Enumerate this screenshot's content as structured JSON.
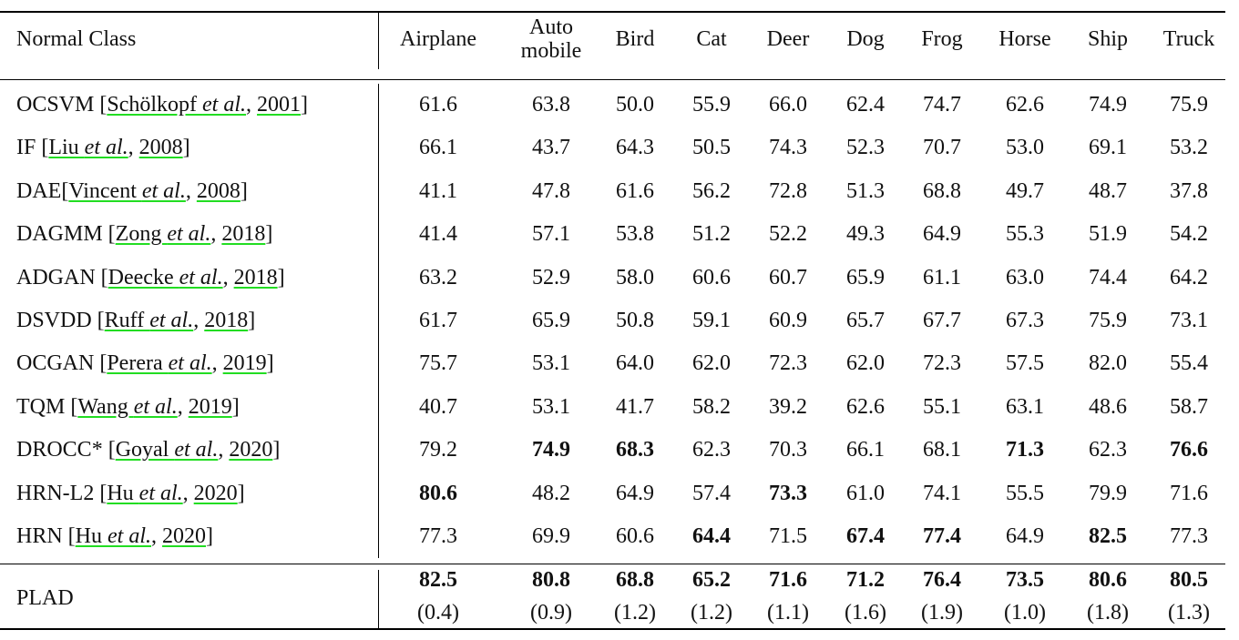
{
  "table": {
    "header": [
      "Normal Class",
      "Airplane",
      "Auto\nmobile",
      "Bird",
      "Cat",
      "Deer",
      "Dog",
      "Frog",
      "Horse",
      "Ship",
      "Truck"
    ],
    "rows": [
      {
        "label": [
          {
            "text": "OCSVM ["
          },
          {
            "text": "Schölkopf ",
            "link": true
          },
          {
            "text": "et al.",
            "link": true,
            "italic": true
          },
          {
            "text": ", "
          },
          {
            "text": "2001",
            "link": true
          },
          {
            "text": "]"
          }
        ],
        "values": [
          "61.6",
          "63.8",
          "50.0",
          "55.9",
          "66.0",
          "62.4",
          "74.7",
          "62.6",
          "74.9",
          "75.9"
        ],
        "bold": [
          false,
          false,
          false,
          false,
          false,
          false,
          false,
          false,
          false,
          false
        ]
      },
      {
        "label": [
          {
            "text": "IF ["
          },
          {
            "text": "Liu ",
            "link": true
          },
          {
            "text": "et al.",
            "link": true,
            "italic": true
          },
          {
            "text": ", "
          },
          {
            "text": "2008",
            "link": true
          },
          {
            "text": "]"
          }
        ],
        "values": [
          "66.1",
          "43.7",
          "64.3",
          "50.5",
          "74.3",
          "52.3",
          "70.7",
          "53.0",
          "69.1",
          "53.2"
        ],
        "bold": [
          false,
          false,
          false,
          false,
          false,
          false,
          false,
          false,
          false,
          false
        ]
      },
      {
        "label": [
          {
            "text": "DAE["
          },
          {
            "text": "Vincent ",
            "link": true
          },
          {
            "text": "et al.",
            "link": true,
            "italic": true
          },
          {
            "text": ", "
          },
          {
            "text": "2008",
            "link": true
          },
          {
            "text": "]"
          }
        ],
        "values": [
          "41.1",
          "47.8",
          "61.6",
          "56.2",
          "72.8",
          "51.3",
          "68.8",
          "49.7",
          "48.7",
          "37.8"
        ],
        "bold": [
          false,
          false,
          false,
          false,
          false,
          false,
          false,
          false,
          false,
          false
        ]
      },
      {
        "label": [
          {
            "text": "DAGMM ["
          },
          {
            "text": "Zong ",
            "link": true
          },
          {
            "text": "et al.",
            "link": true,
            "italic": true
          },
          {
            "text": ", "
          },
          {
            "text": "2018",
            "link": true
          },
          {
            "text": "]"
          }
        ],
        "values": [
          "41.4",
          "57.1",
          "53.8",
          "51.2",
          "52.2",
          "49.3",
          "64.9",
          "55.3",
          "51.9",
          "54.2"
        ],
        "bold": [
          false,
          false,
          false,
          false,
          false,
          false,
          false,
          false,
          false,
          false
        ]
      },
      {
        "label": [
          {
            "text": "ADGAN ["
          },
          {
            "text": "Deecke ",
            "link": true
          },
          {
            "text": "et al.",
            "link": true,
            "italic": true
          },
          {
            "text": ", "
          },
          {
            "text": "2018",
            "link": true
          },
          {
            "text": "]"
          }
        ],
        "values": [
          "63.2",
          "52.9",
          "58.0",
          "60.6",
          "60.7",
          "65.9",
          "61.1",
          "63.0",
          "74.4",
          "64.2"
        ],
        "bold": [
          false,
          false,
          false,
          false,
          false,
          false,
          false,
          false,
          false,
          false
        ]
      },
      {
        "label": [
          {
            "text": "DSVDD ["
          },
          {
            "text": "Ruff ",
            "link": true
          },
          {
            "text": "et al.",
            "link": true,
            "italic": true
          },
          {
            "text": ", "
          },
          {
            "text": "2018",
            "link": true
          },
          {
            "text": "]"
          }
        ],
        "values": [
          "61.7",
          "65.9",
          "50.8",
          "59.1",
          "60.9",
          "65.7",
          "67.7",
          "67.3",
          "75.9",
          "73.1"
        ],
        "bold": [
          false,
          false,
          false,
          false,
          false,
          false,
          false,
          false,
          false,
          false
        ]
      },
      {
        "label": [
          {
            "text": "OCGAN ["
          },
          {
            "text": "Perera ",
            "link": true
          },
          {
            "text": "et al.",
            "link": true,
            "italic": true
          },
          {
            "text": ", "
          },
          {
            "text": "2019",
            "link": true
          },
          {
            "text": "]"
          }
        ],
        "values": [
          "75.7",
          "53.1",
          "64.0",
          "62.0",
          "72.3",
          "62.0",
          "72.3",
          "57.5",
          "82.0",
          "55.4"
        ],
        "bold": [
          false,
          false,
          false,
          false,
          false,
          false,
          false,
          false,
          false,
          false
        ]
      },
      {
        "label": [
          {
            "text": "TQM ["
          },
          {
            "text": "Wang ",
            "link": true
          },
          {
            "text": "et al.",
            "link": true,
            "italic": true
          },
          {
            "text": ", "
          },
          {
            "text": "2019",
            "link": true
          },
          {
            "text": "]"
          }
        ],
        "values": [
          "40.7",
          "53.1",
          "41.7",
          "58.2",
          "39.2",
          "62.6",
          "55.1",
          "63.1",
          "48.6",
          "58.7"
        ],
        "bold": [
          false,
          false,
          false,
          false,
          false,
          false,
          false,
          false,
          false,
          false
        ]
      },
      {
        "label": [
          {
            "text": "DROCC* ["
          },
          {
            "text": "Goyal ",
            "link": true
          },
          {
            "text": "et al.",
            "link": true,
            "italic": true
          },
          {
            "text": ", "
          },
          {
            "text": "2020",
            "link": true
          },
          {
            "text": "]"
          }
        ],
        "values": [
          "79.2",
          "74.9",
          "68.3",
          "62.3",
          "70.3",
          "66.1",
          "68.1",
          "71.3",
          "62.3",
          "76.6"
        ],
        "bold": [
          false,
          true,
          true,
          false,
          false,
          false,
          false,
          true,
          false,
          true
        ]
      },
      {
        "label": [
          {
            "text": "HRN-L2 ["
          },
          {
            "text": "Hu ",
            "link": true
          },
          {
            "text": "et al.",
            "link": true,
            "italic": true
          },
          {
            "text": ", "
          },
          {
            "text": "2020",
            "link": true
          },
          {
            "text": "]"
          }
        ],
        "values": [
          "80.6",
          "48.2",
          "64.9",
          "57.4",
          "73.3",
          "61.0",
          "74.1",
          "55.5",
          "79.9",
          "71.6"
        ],
        "bold": [
          true,
          false,
          false,
          false,
          true,
          false,
          false,
          false,
          false,
          false
        ]
      },
      {
        "label": [
          {
            "text": "HRN ["
          },
          {
            "text": "Hu ",
            "link": true
          },
          {
            "text": "et al.",
            "link": true,
            "italic": true
          },
          {
            "text": ", "
          },
          {
            "text": "2020",
            "link": true
          },
          {
            "text": "]"
          }
        ],
        "values": [
          "77.3",
          "69.9",
          "60.6",
          "64.4",
          "71.5",
          "67.4",
          "77.4",
          "64.9",
          "82.5",
          "77.3"
        ],
        "bold": [
          false,
          false,
          false,
          true,
          false,
          true,
          true,
          false,
          true,
          false
        ]
      }
    ],
    "final": {
      "label": "PLAD",
      "values": [
        "82.5",
        "80.8",
        "68.8",
        "65.2",
        "71.6",
        "71.2",
        "76.4",
        "73.5",
        "80.6",
        "80.5"
      ],
      "std": [
        "(0.4)",
        "(0.9)",
        "(1.2)",
        "(1.2)",
        "(1.1)",
        "(1.6)",
        "(1.9)",
        "(1.0)",
        "(1.8)",
        "(1.3)"
      ],
      "bold": [
        true,
        true,
        true,
        true,
        true,
        true,
        true,
        true,
        true,
        true
      ]
    }
  }
}
